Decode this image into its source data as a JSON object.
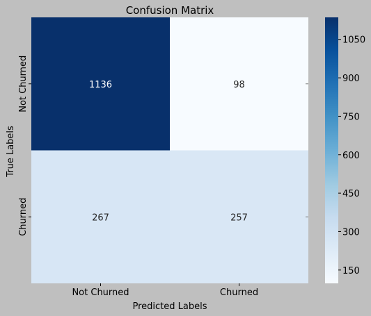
{
  "chart_data": {
    "type": "heatmap",
    "title": "Confusion Matrix",
    "xlabel": "Predicted Labels",
    "ylabel": "True Labels",
    "x_categories": [
      "Not Churned",
      "Churned"
    ],
    "y_categories": [
      "Not Churned",
      "Churned"
    ],
    "values": [
      [
        1136,
        98
      ],
      [
        267,
        257
      ]
    ],
    "colormap": "Blues",
    "colorbar": {
      "min": 98,
      "max": 1136,
      "ticks": [
        150,
        300,
        450,
        600,
        750,
        900,
        1050
      ]
    },
    "grid": false,
    "colors": {
      "low": "#f7fbff",
      "high": "#08306b"
    }
  }
}
